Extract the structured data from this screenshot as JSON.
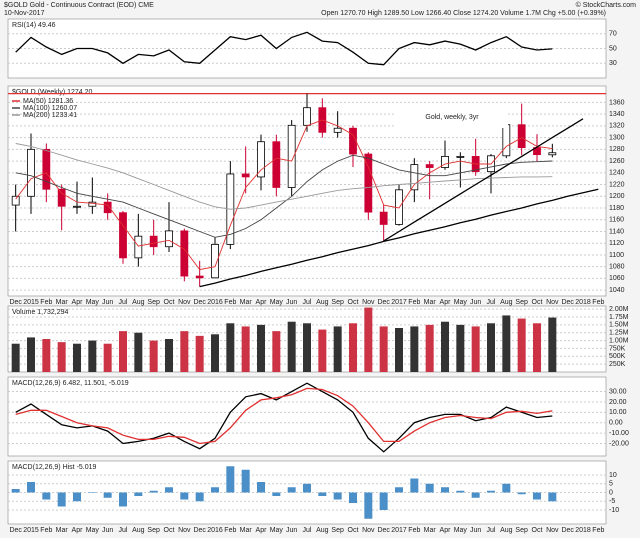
{
  "header": {
    "symbol_line": "$GOLD Gold - Continuous Contract (EOD) CME",
    "date": "10-Nov-2017",
    "quote": "Open 1270.70 High 1289.50 Low 1266.40 Close 1274.20 Volume 1.7M Chg +5.00 (+0.39%)",
    "credit": "© StockCharts.com"
  },
  "chart_data": [
    {
      "type": "line",
      "title": "RSI(14) 49.46",
      "ylim": [
        10,
        90
      ],
      "yticks": [
        30,
        50,
        70
      ],
      "grid": true,
      "series": [
        {
          "color": "#000000",
          "values": [
            45,
            65,
            52,
            42,
            50,
            50,
            44,
            30,
            42,
            40,
            48,
            32,
            30,
            48,
            66,
            62,
            68,
            50,
            65,
            72,
            60,
            58,
            45,
            30,
            28,
            50,
            58,
            55,
            60,
            56,
            48,
            58,
            66,
            52,
            48,
            49.46,
            null,
            null,
            null
          ]
        }
      ]
    },
    {
      "type": "candlestick",
      "title": "$GOLD (Weekly) 1274.20",
      "annotation": "Gold, weekly, 3yr",
      "up_color": "#000000",
      "down_color": "#cc0033",
      "categories": [
        "Dec",
        "2015",
        "Feb",
        "Mar",
        "Apr",
        "May",
        "Jun",
        "Jul",
        "Aug",
        "Sep",
        "Oct",
        "Nov",
        "Dec",
        "2016",
        "Feb",
        "Mar",
        "Apr",
        "May",
        "Jun",
        "Jul",
        "Aug",
        "Sep",
        "Oct",
        "Nov",
        "Dec",
        "2017",
        "Feb",
        "Mar",
        "Apr",
        "May",
        "Jun",
        "Jul",
        "Aug",
        "Sep",
        "Oct",
        "Nov",
        "Dec",
        "2018",
        "Feb"
      ],
      "open": [
        1185,
        1200,
        1280,
        1212,
        1183,
        1183,
        1190,
        1172,
        1095,
        1132,
        1114,
        1141,
        1064,
        1061,
        1118,
        1238,
        1233,
        1293,
        1215,
        1321,
        1351,
        1309,
        1316,
        1272,
        1173,
        1152,
        1211,
        1254,
        1249,
        1268,
        1268,
        1242,
        1269,
        1322,
        1283,
        1270.7,
        null,
        null,
        null
      ],
      "high": [
        1220,
        1307,
        1290,
        1220,
        1225,
        1232,
        1205,
        1175,
        1170,
        1160,
        1190,
        1145,
        1090,
        1130,
        1260,
        1285,
        1305,
        1305,
        1330,
        1375,
        1367,
        1345,
        1320,
        1275,
        1185,
        1220,
        1265,
        1260,
        1295,
        1275,
        1298,
        1272,
        1325,
        1358,
        1306,
        1289.5,
        null,
        null,
        null
      ],
      "low": [
        1140,
        1170,
        1190,
        1142,
        1170,
        1170,
        1160,
        1085,
        1080,
        1100,
        1105,
        1055,
        1046,
        1060,
        1110,
        1205,
        1210,
        1200,
        1200,
        1310,
        1300,
        1300,
        1250,
        1160,
        1124,
        1150,
        1190,
        1195,
        1245,
        1215,
        1235,
        1205,
        1265,
        1270,
        1260,
        1266.4,
        null,
        null,
        null
      ],
      "close": [
        1200,
        1280,
        1212,
        1183,
        1183,
        1190,
        1172,
        1095,
        1132,
        1114,
        1141,
        1064,
        1061,
        1118,
        1238,
        1233,
        1293,
        1215,
        1321,
        1351,
        1309,
        1316,
        1272,
        1173,
        1152,
        1211,
        1254,
        1249,
        1268,
        1268,
        1242,
        1269,
        1322,
        1283,
        1271,
        1274.2,
        null,
        null,
        null
      ],
      "ylim": [
        1030,
        1388
      ],
      "yticks": [
        1040,
        1060,
        1080,
        1100,
        1120,
        1140,
        1160,
        1180,
        1200,
        1220,
        1240,
        1260,
        1280,
        1300,
        1320,
        1340,
        1360
      ],
      "grid": true,
      "hline": 1375,
      "hline_color": "#e03030",
      "series": [
        {
          "name": "MA(50) 1281.36",
          "color": "#e03030",
          "values": [
            1195,
            1230,
            1240,
            1205,
            1190,
            1188,
            1185,
            1150,
            1115,
            1120,
            1125,
            1110,
            1075,
            1080,
            1150,
            1215,
            1245,
            1265,
            1260,
            1320,
            1330,
            1320,
            1305,
            1250,
            1185,
            1180,
            1220,
            1240,
            1255,
            1260,
            1255,
            1255,
            1285,
            1300,
            1285,
            1281.36,
            null,
            null,
            null
          ]
        },
        {
          "name": "MA(100) 1260.07",
          "color": "#444444",
          "values": [
            1240,
            1235,
            1225,
            1215,
            1205,
            1200,
            1195,
            1190,
            1180,
            1170,
            1160,
            1150,
            1140,
            1130,
            1135,
            1145,
            1160,
            1180,
            1200,
            1225,
            1245,
            1260,
            1270,
            1265,
            1255,
            1245,
            1240,
            1235,
            1235,
            1240,
            1245,
            1250,
            1255,
            1258,
            1259,
            1260.07,
            null,
            null,
            null
          ]
        },
        {
          "name": "MA(200) 1233.41",
          "color": "#999999",
          "values": [
            1290,
            1285,
            1278,
            1270,
            1262,
            1255,
            1248,
            1240,
            1230,
            1220,
            1210,
            1200,
            1190,
            1182,
            1178,
            1180,
            1185,
            1190,
            1195,
            1200,
            1205,
            1210,
            1213,
            1215,
            1218,
            1220,
            1222,
            1224,
            1226,
            1228,
            1230,
            1231,
            1232,
            1233,
            1233,
            1233.41,
            null,
            null,
            null
          ]
        },
        {
          "color": "#000000",
          "values": [
            null,
            null,
            null,
            null,
            null,
            null,
            null,
            null,
            null,
            null,
            null,
            null,
            1046,
            1052,
            1059,
            1065,
            1072,
            1078,
            1084,
            1091,
            1097,
            1104,
            1110,
            1116,
            1123,
            1129,
            1136,
            1142,
            1148,
            1155,
            1161,
            1168,
            1174,
            1180,
            1187,
            1193,
            1200,
            1206,
            1212
          ]
        },
        {
          "color": "#000000",
          "values": [
            null,
            null,
            null,
            null,
            null,
            null,
            null,
            null,
            null,
            null,
            null,
            null,
            null,
            null,
            null,
            null,
            null,
            null,
            null,
            null,
            null,
            null,
            null,
            null,
            1124,
            1140,
            1156,
            1172,
            1188,
            1204,
            1220,
            1236,
            1252,
            1268,
            1284,
            1300,
            1316,
            1332,
            null
          ]
        }
      ]
    },
    {
      "type": "bar",
      "title": "Volume 1,732,294",
      "color": "#cc3344",
      "ylim": [
        0,
        2100000
      ],
      "yticks": [
        {
          "value": 250000,
          "label": "250K"
        },
        {
          "value": 500000,
          "label": "500K"
        },
        {
          "value": 750000,
          "label": "750K"
        },
        {
          "value": 1000000,
          "label": "1.00M"
        },
        {
          "value": 1250000,
          "label": "1.25M"
        },
        {
          "value": 1500000,
          "label": "1.50M"
        },
        {
          "value": 1750000,
          "label": "1.75M"
        },
        {
          "value": 2000000,
          "label": "2.00M"
        }
      ],
      "grid": true,
      "values": [
        900000,
        1100000,
        1050000,
        950000,
        900000,
        1000000,
        900000,
        1300000,
        1250000,
        1000000,
        1050000,
        1300000,
        1150000,
        1200000,
        1550000,
        1450000,
        1500000,
        1300000,
        1600000,
        1550000,
        1350000,
        1450000,
        1550000,
        2050000,
        1450000,
        1400000,
        1450000,
        1500000,
        1600000,
        1500000,
        1450000,
        1550000,
        1800000,
        1700000,
        1550000,
        1732294,
        null,
        null,
        null
      ]
    },
    {
      "type": "line",
      "title": "MACD(12,26,9) 6.482, 11.501, -5.019",
      "ylim": [
        -32,
        44
      ],
      "yticks": [
        {
          "value": -20,
          "label": "-20.00"
        },
        {
          "value": -10,
          "label": "-10.00"
        },
        {
          "value": 0,
          "label": "0.00"
        },
        {
          "value": 10,
          "label": "10.00"
        },
        {
          "value": 20,
          "label": "20.00"
        },
        {
          "value": 30,
          "label": "30.00"
        }
      ],
      "grid": true,
      "series": [
        {
          "color": "#000000",
          "values": [
            10,
            18,
            8,
            -2,
            -5,
            -3,
            -8,
            -20,
            -18,
            -15,
            -10,
            -18,
            -25,
            -15,
            10,
            25,
            28,
            22,
            30,
            38,
            30,
            22,
            10,
            -15,
            -28,
            -15,
            0,
            5,
            8,
            8,
            2,
            5,
            15,
            10,
            5,
            6.482,
            null,
            null,
            null
          ]
        },
        {
          "color": "#e03030",
          "values": [
            8,
            12,
            12,
            6,
            0,
            -3,
            -5,
            -12,
            -16,
            -16,
            -13,
            -14,
            -20,
            -18,
            -5,
            12,
            22,
            24,
            27,
            33,
            32,
            26,
            16,
            0,
            -18,
            -18,
            -8,
            0,
            5,
            7,
            5,
            4,
            10,
            11,
            9,
            11.501,
            null,
            null,
            null
          ]
        }
      ]
    },
    {
      "type": "bar",
      "title": "MACD(12,26,9) Hist -5.019",
      "color": "#4a8fc7",
      "ylim": [
        -18,
        18
      ],
      "yticks": [
        -10,
        -5,
        0,
        5,
        10
      ],
      "grid": true,
      "categories": [
        "Dec",
        "2015",
        "Feb",
        "Mar",
        "Apr",
        "May",
        "Jun",
        "Jul",
        "Aug",
        "Sep",
        "Oct",
        "Nov",
        "Dec",
        "2016",
        "Feb",
        "Mar",
        "Apr",
        "May",
        "Jun",
        "Jul",
        "Aug",
        "Sep",
        "Oct",
        "Nov",
        "Dec",
        "2017",
        "Feb",
        "Mar",
        "Apr",
        "May",
        "Jun",
        "Jul",
        "Aug",
        "Sep",
        "Oct",
        "Nov",
        "Dec",
        "2018",
        "Feb"
      ],
      "values": [
        2,
        6,
        -4,
        -8,
        -5,
        0,
        -3,
        -8,
        -2,
        1,
        3,
        -4,
        -5,
        3,
        15,
        13,
        6,
        -2,
        3,
        5,
        -2,
        -4,
        -6,
        -15,
        -10,
        3,
        8,
        5,
        3,
        1,
        -3,
        1,
        5,
        -1,
        -4,
        -5.019,
        null,
        null,
        null
      ]
    }
  ]
}
